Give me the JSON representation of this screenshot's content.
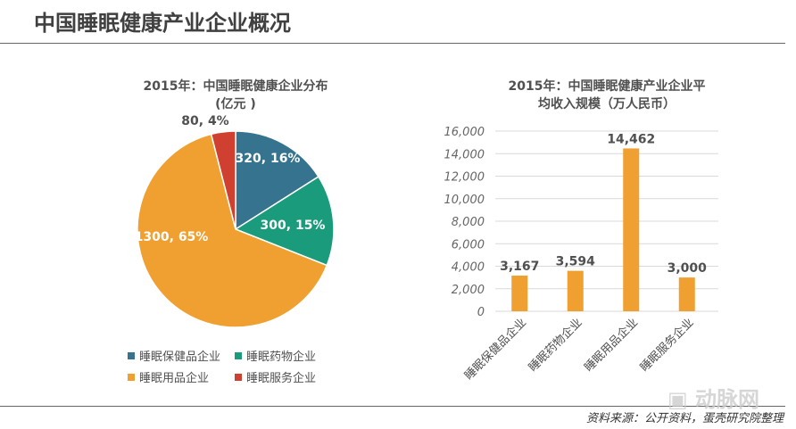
{
  "page_title": "中国睡眠健康产业企业概况",
  "source": "资料来源：公开资料，蛋壳研究院整理",
  "watermark": "动脉网",
  "chart_data": [
    {
      "type": "pie",
      "title": "2015年：中国睡眠健康企业分布",
      "subtitle": "(亿元 )",
      "categories": [
        "睡眠保健品企业",
        "睡眠药物企业",
        "睡眠用品企业",
        "睡眠服务企业"
      ],
      "values": [
        320,
        300,
        1300,
        80
      ],
      "data_labels": [
        "320, 16%",
        "300, 15%",
        "1300, 65%",
        "80, 4%"
      ],
      "colors": [
        "#35738f",
        "#1a9b7b",
        "#f0a030",
        "#d04030"
      ],
      "legend": "bottom"
    },
    {
      "type": "bar",
      "title": "2015年：中国睡眠健康产业企业平",
      "subtitle": "均收入规模（万人民币）",
      "categories": [
        "睡眠保健品企业",
        "睡眠药物企业",
        "睡眠用品企业",
        "睡眠服务企业"
      ],
      "values": [
        3167,
        3594,
        14462,
        3000
      ],
      "data_labels": [
        "3,167",
        "3,594",
        "14,462",
        "3,000"
      ],
      "yticks": [
        "0",
        "2,000",
        "4,000",
        "6,000",
        "8,000",
        "10,000",
        "12,000",
        "14,000",
        "16,000"
      ],
      "ylim": [
        0,
        16000
      ],
      "grid": true,
      "color": "#f0a030"
    }
  ]
}
